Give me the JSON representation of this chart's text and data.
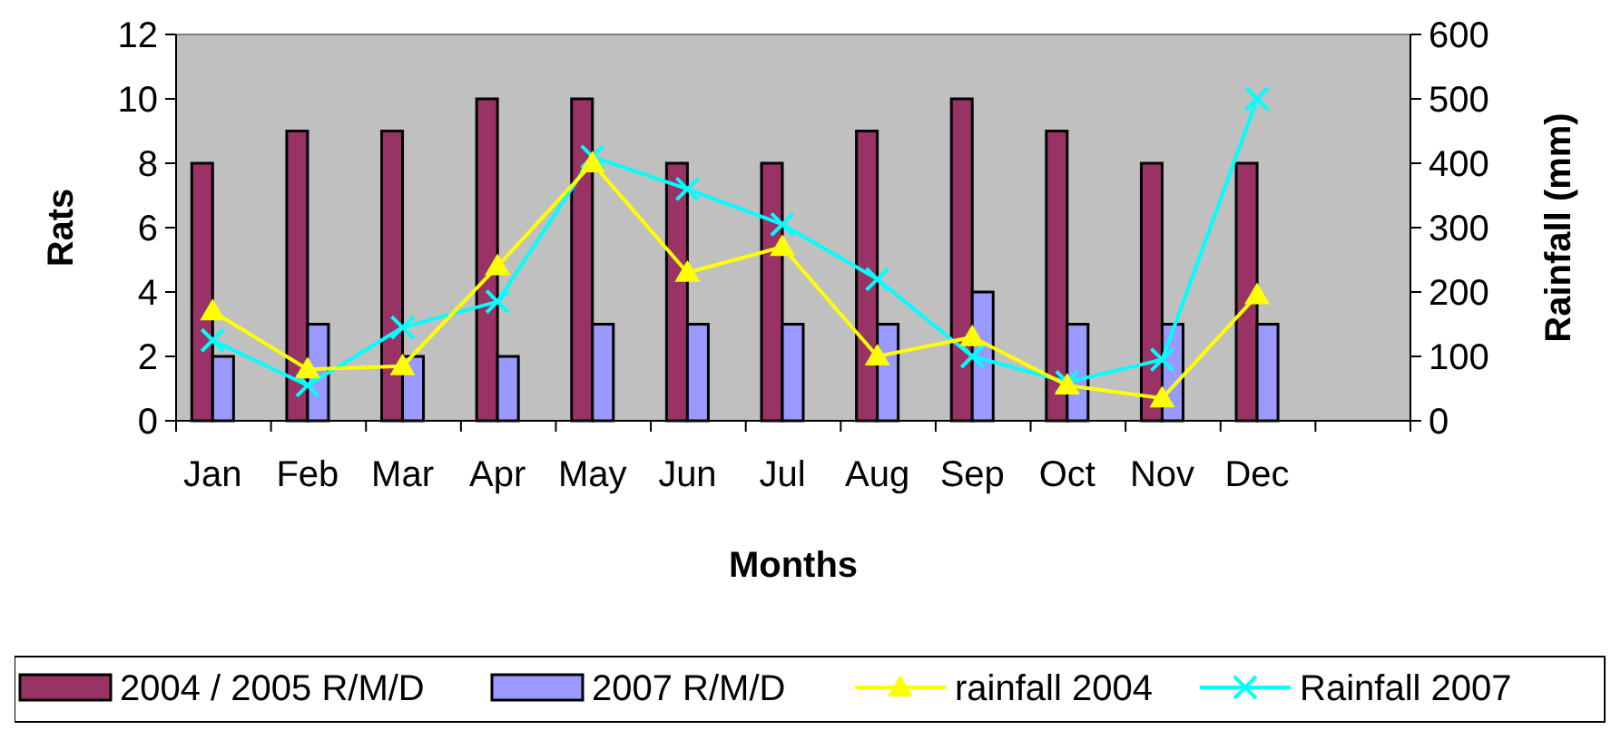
{
  "chart_data": {
    "type": "bar",
    "xlabel": "Months",
    "ylabel": "Rats",
    "y2label": "Rainfall (mm)",
    "categories": [
      "Jan",
      "Feb",
      "Mar",
      "Apr",
      "May",
      "Jun",
      "Jul",
      "Aug",
      "Sep",
      "Oct",
      "Nov",
      "Dec",
      null
    ],
    "series": [
      {
        "name": "2004 / 2005 R/M/D",
        "color": "#993366",
        "values": [
          8,
          9,
          9,
          10,
          10,
          8,
          8,
          9,
          10,
          9,
          8,
          8,
          null
        ]
      },
      {
        "name": "2007 R/M/D",
        "color": "#9999ff",
        "values": [
          2,
          3,
          2,
          2,
          3,
          3,
          3,
          3,
          4,
          3,
          3,
          3,
          null
        ]
      },
      {
        "name": "rainfall 2004",
        "type": "line",
        "axis": "y2",
        "marker": "triangle",
        "color": "#ffff00",
        "values": [
          170,
          80,
          85,
          240,
          400,
          230,
          270,
          100,
          130,
          55,
          35,
          195,
          null
        ]
      },
      {
        "name": "Rainfall 2007",
        "type": "line",
        "axis": "y2",
        "marker": "cross",
        "color": "#00ffff",
        "values": [
          125,
          55,
          145,
          185,
          410,
          360,
          305,
          220,
          100,
          60,
          95,
          500,
          null
        ]
      }
    ],
    "ylim": [
      0,
      12
    ],
    "yticks": [
      0,
      2,
      4,
      6,
      8,
      10,
      12
    ],
    "y2lim": [
      0,
      600
    ],
    "y2ticks": [
      0,
      100,
      200,
      300,
      400,
      500,
      600
    ],
    "grid": false,
    "legend": "bottom"
  }
}
